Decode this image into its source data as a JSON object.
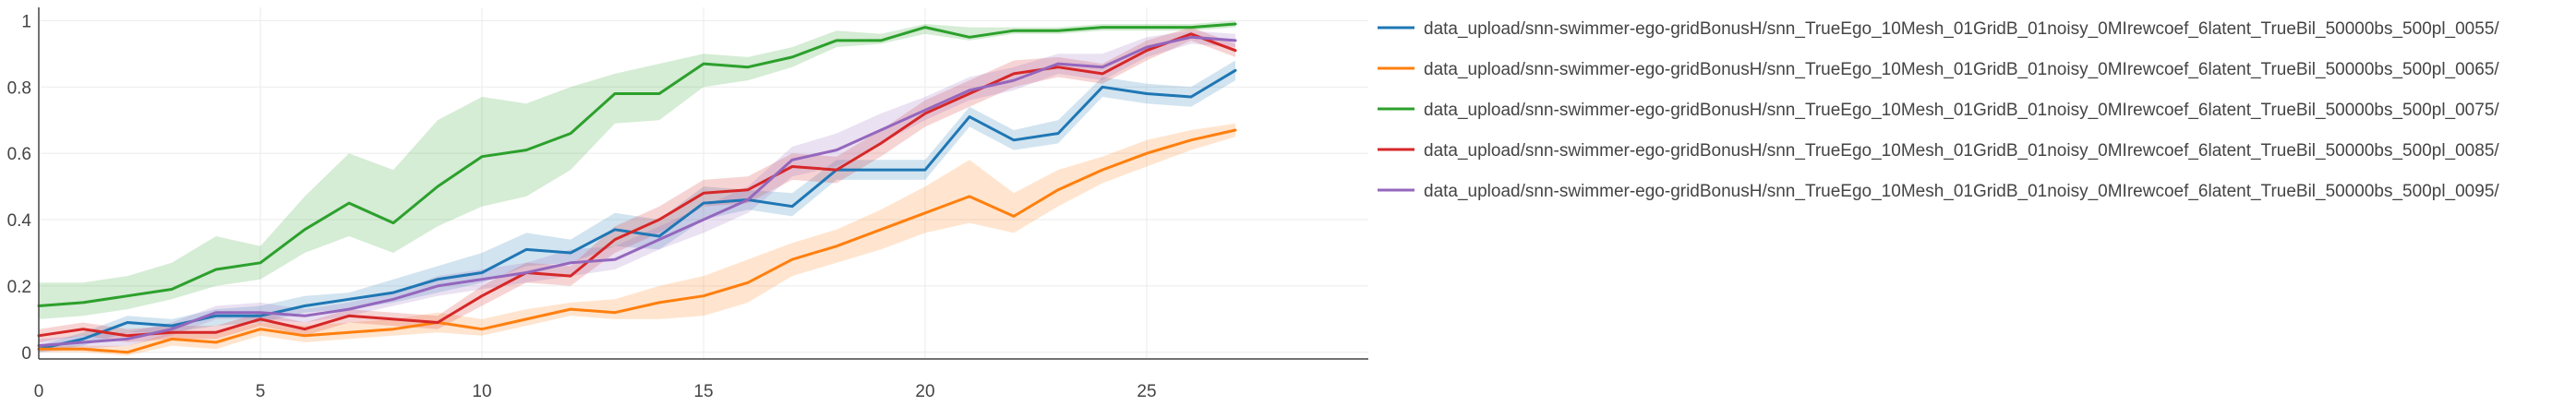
{
  "chart_data": {
    "type": "line",
    "title": "",
    "xlabel": "",
    "ylabel": "",
    "xlim": [
      0,
      30
    ],
    "ylim": [
      -0.02,
      1.04
    ],
    "grid": true,
    "legend_position": "right",
    "x_ticks": [
      0,
      5,
      10,
      15,
      20,
      25
    ],
    "y_ticks": [
      0,
      0.2,
      0.4,
      0.6,
      0.8,
      1
    ],
    "x_tick_labels": [
      "0",
      "5",
      "10",
      "15",
      "20",
      "25"
    ],
    "y_tick_labels": [
      "0",
      "0.2",
      "0.4",
      "0.6",
      "0.8",
      "1"
    ],
    "x": [
      0,
      1,
      2,
      3,
      4,
      5,
      6,
      7,
      8,
      9,
      10,
      11,
      12,
      13,
      14,
      15,
      16,
      17,
      18,
      19,
      20,
      21,
      22,
      23,
      24,
      25,
      26,
      27
    ],
    "series": [
      {
        "name": "data_upload/snn-swimmer-ego-gridBonusH/snn_TrueEgo_10Mesh_01GridB_01noisy_0MIrewcoef_6latent_TrueBil_50000bs_500pl_0055/",
        "color": "#1f77b4",
        "fill": "rgba(31,119,180,0.2)",
        "values": [
          0.01,
          0.04,
          0.09,
          0.08,
          0.11,
          0.11,
          0.14,
          0.16,
          0.18,
          0.22,
          0.24,
          0.31,
          0.3,
          0.37,
          0.35,
          0.45,
          0.46,
          0.44,
          0.55,
          0.55,
          0.55,
          0.71,
          0.64,
          0.66,
          0.8,
          0.78,
          0.77,
          0.85
        ],
        "lower": [
          0.0,
          0.02,
          0.06,
          0.06,
          0.08,
          0.09,
          0.12,
          0.13,
          0.15,
          0.18,
          0.21,
          0.26,
          0.27,
          0.32,
          0.31,
          0.4,
          0.43,
          0.41,
          0.52,
          0.52,
          0.52,
          0.68,
          0.61,
          0.63,
          0.77,
          0.75,
          0.74,
          0.82
        ],
        "upper": [
          0.02,
          0.06,
          0.11,
          0.1,
          0.13,
          0.14,
          0.17,
          0.18,
          0.22,
          0.26,
          0.3,
          0.36,
          0.34,
          0.42,
          0.4,
          0.5,
          0.49,
          0.48,
          0.58,
          0.58,
          0.58,
          0.74,
          0.67,
          0.7,
          0.83,
          0.81,
          0.8,
          0.88
        ]
      },
      {
        "name": "data_upload/snn-swimmer-ego-gridBonusH/snn_TrueEgo_10Mesh_01GridB_01noisy_0MIrewcoef_6latent_TrueBil_50000bs_500pl_0065/",
        "color": "#ff7f0e",
        "fill": "rgba(255,127,14,0.2)",
        "values": [
          0.01,
          0.01,
          0.0,
          0.04,
          0.03,
          0.07,
          0.05,
          0.06,
          0.07,
          0.09,
          0.07,
          0.1,
          0.13,
          0.12,
          0.15,
          0.17,
          0.21,
          0.28,
          0.32,
          0.37,
          0.42,
          0.47,
          0.41,
          0.49,
          0.55,
          0.6,
          0.64,
          0.67
        ],
        "lower": [
          0.0,
          0.0,
          -0.01,
          0.02,
          0.01,
          0.05,
          0.03,
          0.04,
          0.05,
          0.06,
          0.05,
          0.08,
          0.11,
          0.1,
          0.1,
          0.11,
          0.15,
          0.23,
          0.27,
          0.31,
          0.36,
          0.39,
          0.36,
          0.44,
          0.51,
          0.56,
          0.61,
          0.65
        ],
        "upper": [
          0.02,
          0.02,
          0.02,
          0.06,
          0.06,
          0.09,
          0.08,
          0.09,
          0.1,
          0.12,
          0.1,
          0.13,
          0.15,
          0.16,
          0.2,
          0.23,
          0.28,
          0.33,
          0.37,
          0.43,
          0.5,
          0.58,
          0.48,
          0.55,
          0.59,
          0.64,
          0.67,
          0.69
        ]
      },
      {
        "name": "data_upload/snn-swimmer-ego-gridBonusH/snn_TrueEgo_10Mesh_01GridB_01noisy_0MIrewcoef_6latent_TrueBil_50000bs_500pl_0075/",
        "color": "#2ca02c",
        "fill": "rgba(44,160,44,0.2)",
        "values": [
          0.14,
          0.15,
          0.17,
          0.19,
          0.25,
          0.27,
          0.37,
          0.45,
          0.39,
          0.5,
          0.59,
          0.61,
          0.66,
          0.78,
          0.78,
          0.87,
          0.86,
          0.89,
          0.94,
          0.94,
          0.98,
          0.95,
          0.97,
          0.97,
          0.98,
          0.98,
          0.98,
          0.99
        ],
        "lower": [
          0.1,
          0.11,
          0.13,
          0.16,
          0.2,
          0.22,
          0.3,
          0.35,
          0.3,
          0.38,
          0.44,
          0.47,
          0.55,
          0.69,
          0.7,
          0.8,
          0.82,
          0.86,
          0.92,
          0.93,
          0.96,
          0.94,
          0.96,
          0.96,
          0.97,
          0.97,
          0.97,
          0.98
        ],
        "upper": [
          0.21,
          0.21,
          0.23,
          0.27,
          0.35,
          0.32,
          0.47,
          0.6,
          0.55,
          0.7,
          0.77,
          0.75,
          0.8,
          0.84,
          0.87,
          0.9,
          0.89,
          0.92,
          0.97,
          0.96,
          0.99,
          0.98,
          0.98,
          0.98,
          0.99,
          0.99,
          0.99,
          1.0
        ]
      },
      {
        "name": "data_upload/snn-swimmer-ego-gridBonusH/snn_TrueEgo_10Mesh_01GridB_01noisy_0MIrewcoef_6latent_TrueBil_50000bs_500pl_0085/",
        "color": "#d62728",
        "fill": "rgba(214,39,40,0.2)",
        "values": [
          0.05,
          0.07,
          0.05,
          0.06,
          0.06,
          0.1,
          0.07,
          0.11,
          0.1,
          0.09,
          0.17,
          0.24,
          0.23,
          0.34,
          0.4,
          0.48,
          0.49,
          0.56,
          0.55,
          0.63,
          0.72,
          0.78,
          0.84,
          0.86,
          0.84,
          0.91,
          0.96,
          0.91
        ],
        "lower": [
          0.03,
          0.05,
          0.03,
          0.04,
          0.04,
          0.08,
          0.05,
          0.09,
          0.08,
          0.07,
          0.14,
          0.21,
          0.2,
          0.3,
          0.36,
          0.44,
          0.45,
          0.52,
          0.51,
          0.59,
          0.68,
          0.74,
          0.8,
          0.83,
          0.81,
          0.88,
          0.94,
          0.89
        ],
        "upper": [
          0.07,
          0.09,
          0.07,
          0.08,
          0.08,
          0.12,
          0.09,
          0.13,
          0.12,
          0.11,
          0.2,
          0.27,
          0.26,
          0.38,
          0.44,
          0.52,
          0.53,
          0.6,
          0.59,
          0.67,
          0.76,
          0.82,
          0.88,
          0.89,
          0.87,
          0.94,
          0.98,
          0.93
        ]
      },
      {
        "name": "data_upload/snn-swimmer-ego-gridBonusH/snn_TrueEgo_10Mesh_01GridB_01noisy_0MIrewcoef_6latent_TrueBil_50000bs_500pl_0095/",
        "color": "#9467bd",
        "fill": "rgba(148,103,189,0.2)",
        "values": [
          0.02,
          0.03,
          0.04,
          0.07,
          0.12,
          0.12,
          0.11,
          0.13,
          0.16,
          0.2,
          0.22,
          0.24,
          0.27,
          0.28,
          0.34,
          0.4,
          0.46,
          0.58,
          0.61,
          0.67,
          0.73,
          0.79,
          0.82,
          0.87,
          0.86,
          0.92,
          0.95,
          0.94
        ],
        "lower": [
          0.0,
          0.01,
          0.02,
          0.05,
          0.1,
          0.1,
          0.09,
          0.11,
          0.14,
          0.17,
          0.19,
          0.21,
          0.23,
          0.25,
          0.31,
          0.36,
          0.42,
          0.53,
          0.56,
          0.63,
          0.7,
          0.76,
          0.79,
          0.84,
          0.82,
          0.89,
          0.93,
          0.92
        ],
        "upper": [
          0.04,
          0.05,
          0.06,
          0.09,
          0.14,
          0.15,
          0.13,
          0.15,
          0.18,
          0.23,
          0.25,
          0.27,
          0.31,
          0.32,
          0.38,
          0.44,
          0.5,
          0.62,
          0.66,
          0.72,
          0.77,
          0.83,
          0.86,
          0.9,
          0.9,
          0.95,
          0.97,
          0.96
        ]
      }
    ]
  }
}
